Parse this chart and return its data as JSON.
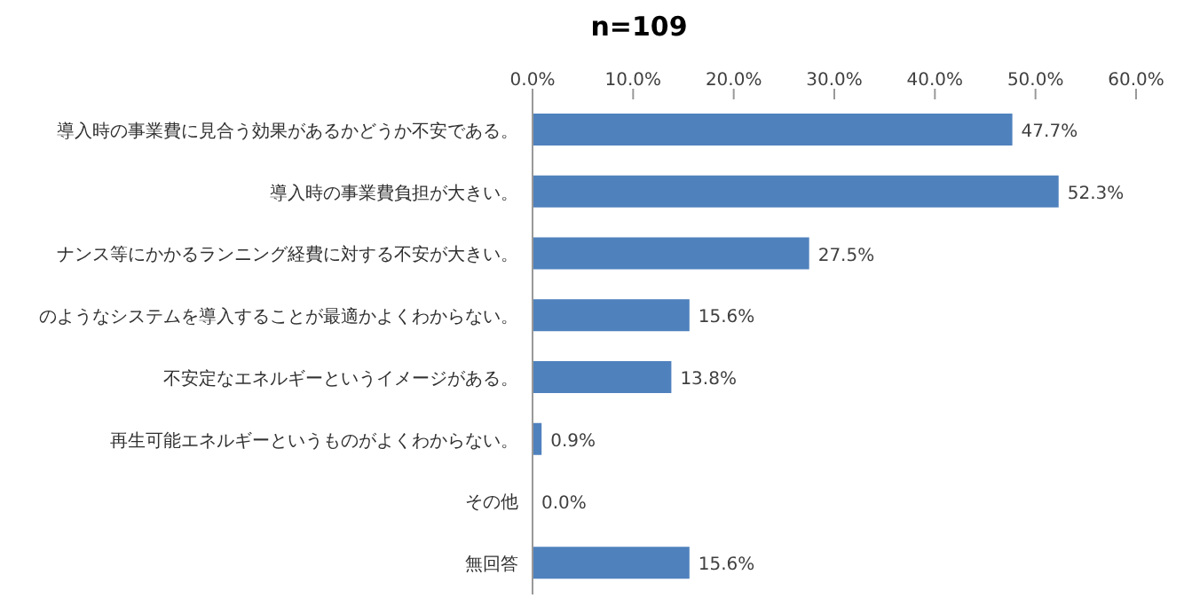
{
  "chart_data": {
    "type": "bar",
    "orientation": "horizontal",
    "title": "n=109",
    "categories": [
      "導入時の事業費に見合う効果があるかどうか不安である。",
      "導入時の事業費負担が大きい。",
      "ナンス等にかかるランニング経費に対する不安が大きい。",
      "のようなシステムを導入することが最適かよくわからない。",
      "不安定なエネルギーというイメージがある。",
      "再生可能エネルギーというものがよくわからない。",
      "その他",
      "無回答"
    ],
    "values": [
      47.7,
      52.3,
      27.5,
      15.6,
      13.8,
      0.9,
      0,
      15.6
    ],
    "value_labels": [
      "47.7%",
      "52.3%",
      "27.5%",
      "15.6%",
      "13.8%",
      "0.9%",
      "0.0%",
      "15.6%"
    ],
    "color": "#4f81bd",
    "xlim": [
      0,
      60
    ],
    "xticks": [
      {
        "value": 0,
        "label": "0.0%"
      },
      {
        "value": 10,
        "label": "10.0%"
      },
      {
        "value": 20,
        "label": "20.0%"
      },
      {
        "value": 30,
        "label": "30.0%"
      },
      {
        "value": 40,
        "label": "40.0%"
      },
      {
        "value": 50,
        "label": "50.0%"
      },
      {
        "value": 60,
        "label": "60.0%"
      }
    ]
  }
}
